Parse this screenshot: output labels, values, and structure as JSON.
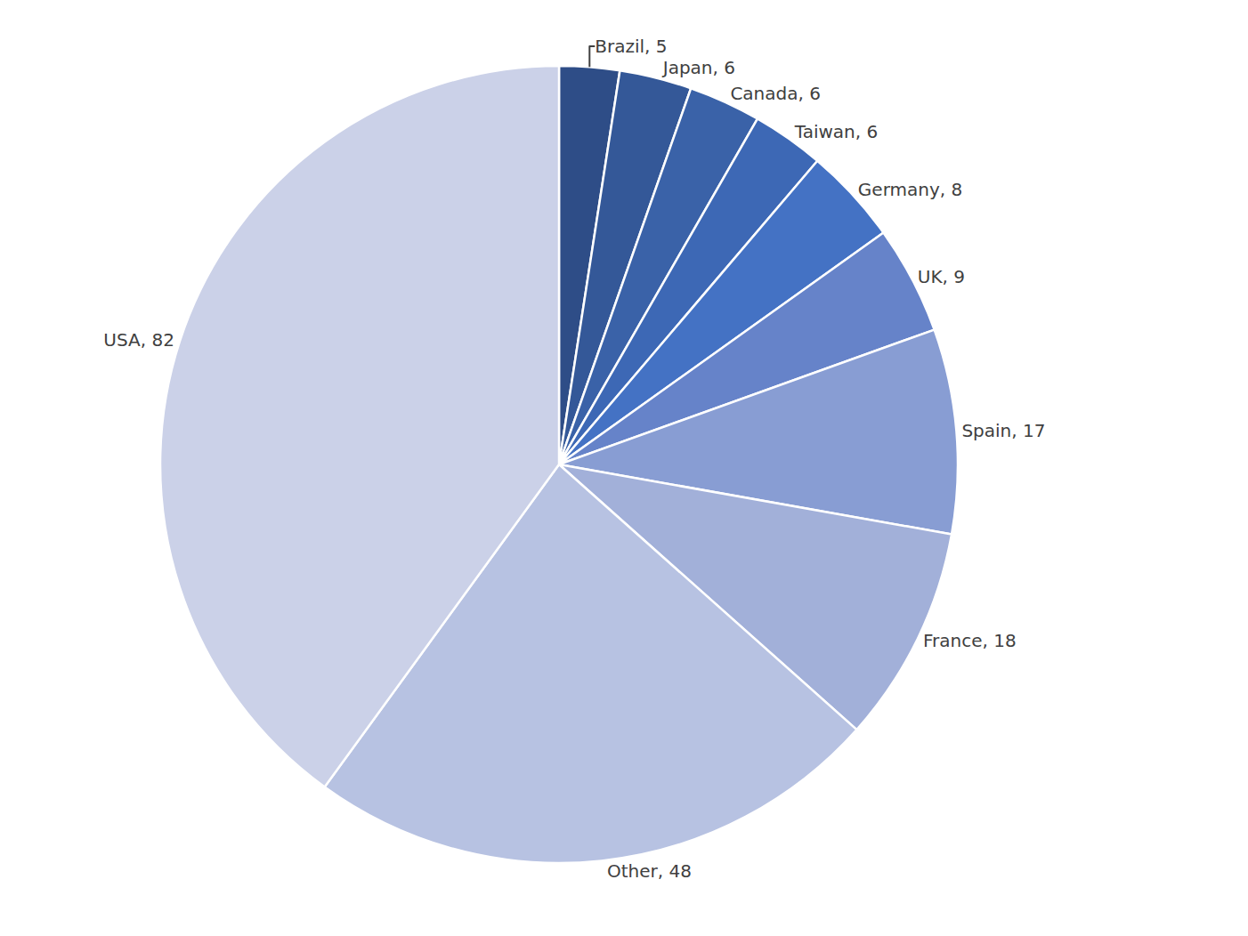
{
  "chart_data": {
    "type": "pie",
    "categories": [
      "Brazil",
      "Japan",
      "Canada",
      "Taiwan",
      "Germany",
      "UK",
      "Spain",
      "France",
      "Other",
      "USA"
    ],
    "values": [
      5,
      6,
      6,
      6,
      8,
      9,
      17,
      18,
      48,
      82
    ],
    "value_labels": [
      "Brazil, 5",
      "Japan, 6",
      "Canada, 6",
      "Taiwan, 6",
      "Germany, 8",
      "UK, 9",
      "Spain, 17",
      "France, 18",
      "Other, 48",
      "USA, 82"
    ],
    "colors": [
      "#2e4d87",
      "#345898",
      "#3a62a8",
      "#3d68b5",
      "#4472c4",
      "#6683c9",
      "#889dd3",
      "#a2b0d9",
      "#b7c2e2",
      "#cbd1e8"
    ],
    "data_labels": true
  }
}
